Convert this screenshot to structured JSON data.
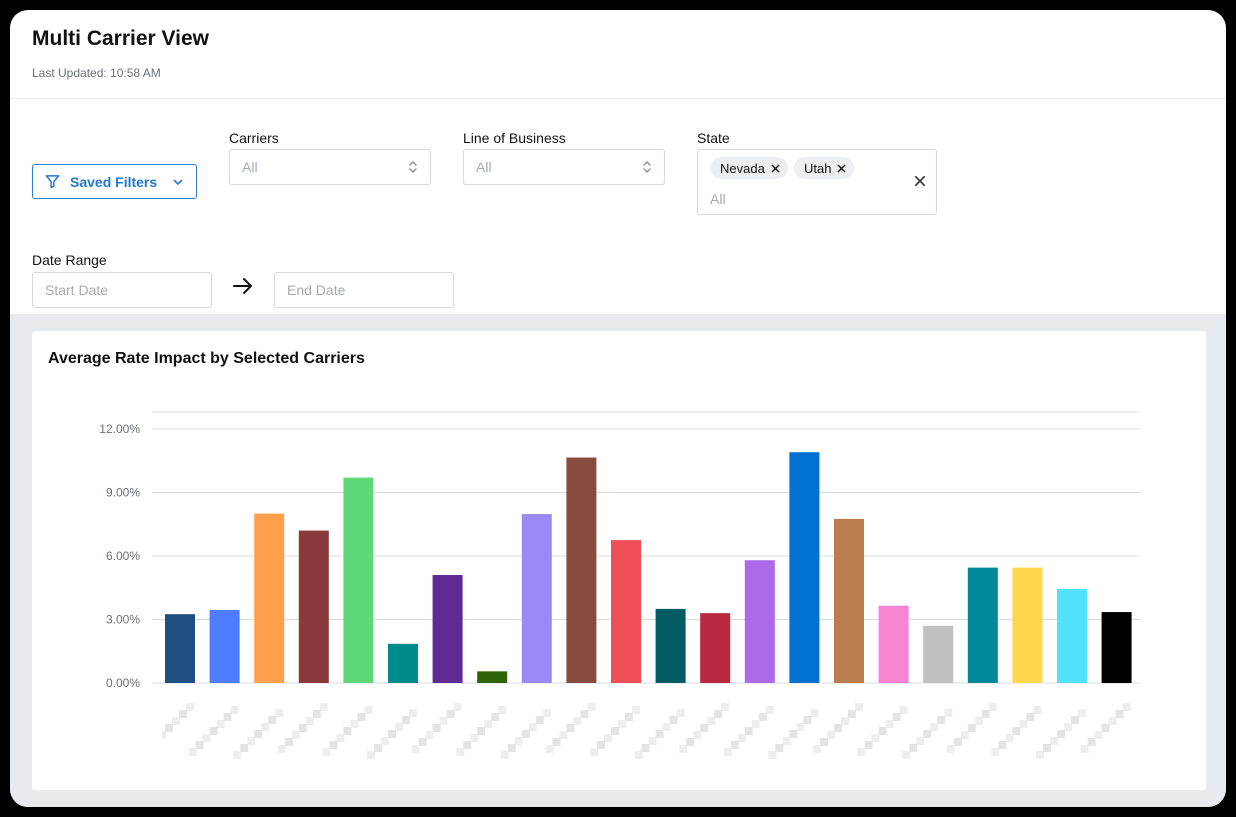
{
  "header": {
    "title": "Multi Carrier View",
    "last_updated": "Last Updated: 10:58 AM"
  },
  "filters": {
    "saved_filters_label": "Saved Filters",
    "carriers": {
      "label": "Carriers",
      "placeholder": "All"
    },
    "line_of_business": {
      "label": "Line of Business",
      "placeholder": "All"
    },
    "state": {
      "label": "State",
      "selected": [
        "Nevada",
        "Utah"
      ],
      "placeholder": "All"
    },
    "date_range": {
      "label": "Date Range",
      "start_placeholder": "Start Date",
      "end_placeholder": "End Date"
    }
  },
  "icons": {
    "filter": "filter-icon",
    "chevron": "chevron-down-icon",
    "updown": "select-updown-icon",
    "remove": "close-icon",
    "arrow": "arrow-right-icon"
  },
  "colors": {
    "accent": "#1f78d1",
    "gridline": "#d9dcdf",
    "background": "#e8eaed"
  },
  "chart_data": {
    "type": "bar",
    "title": "Average Rate Impact by Selected Carriers",
    "xlabel": "",
    "ylabel": "",
    "ylim": [
      0,
      12.8
    ],
    "yticks": [
      0,
      3,
      6,
      9,
      12
    ],
    "ytick_labels": [
      "0.00%",
      "3.00%",
      "6.00%",
      "9.00%",
      "12.00%"
    ],
    "grid": true,
    "category_labels_obscured": true,
    "values": [
      3.25,
      3.45,
      8.0,
      7.2,
      9.7,
      1.85,
      5.1,
      0.55,
      7.98,
      10.65,
      6.75,
      3.5,
      3.3,
      5.8,
      10.9,
      7.75,
      3.65,
      2.7,
      5.45,
      5.45,
      4.45,
      3.35
    ],
    "colors": [
      "#1f4e83",
      "#4f7cff",
      "#ffa04c",
      "#8b3a3c",
      "#5ed878",
      "#008a8a",
      "#5f2a91",
      "#2c6407",
      "#9a8af5",
      "#874c3e",
      "#ee4e55",
      "#025a62",
      "#b8283f",
      "#ad6ae8",
      "#0070d1",
      "#bb7d4e",
      "#f784d3",
      "#c0c0c0",
      "#00899b",
      "#ffd84d",
      "#52e2ff",
      "#000000"
    ]
  }
}
